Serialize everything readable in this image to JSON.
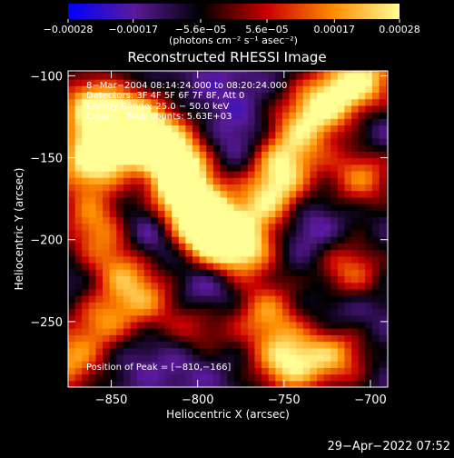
{
  "chart_data": {
    "type": "heatmap",
    "title": "Reconstructed RHESSI Image",
    "xlabel": "Heliocentric X (arcsec)",
    "ylabel": "Heliocentric Y (arcsec)",
    "xlim": [
      -875,
      -690
    ],
    "ylim": [
      -290,
      -97
    ],
    "x_ticks": [
      {
        "value": -850,
        "label": "−850"
      },
      {
        "value": -800,
        "label": "−800"
      },
      {
        "value": -750,
        "label": "−750"
      },
      {
        "value": -700,
        "label": "−700"
      }
    ],
    "y_ticks": [
      {
        "value": -100,
        "label": "−100"
      },
      {
        "value": -150,
        "label": "−150"
      },
      {
        "value": -200,
        "label": "−200"
      },
      {
        "value": -250,
        "label": "−250"
      }
    ],
    "colorbar": {
      "min": -0.00028,
      "max": 0.00028,
      "tick_values": [
        -0.00028,
        -0.00017,
        -5.6e-05,
        5.6e-05,
        0.00017,
        0.00028
      ],
      "tick_labels": [
        "−0.00028",
        "−0.00017",
        "−5.6e−05",
        "5.6e−05",
        "0.00017",
        "0.00028"
      ],
      "unit_label": "(photons cm⁻² s⁻¹ asec⁻²)",
      "colors": [
        "#0000ff",
        "#5a1a9a",
        "#000000",
        "#c80000",
        "#ff8c00",
        "#ffff96"
      ]
    },
    "annotations": [
      "8−Mar−2004 08:14:24.000 to 08:20:24.000",
      "Detectors: 3F 4F 5F 6F 7F 8F, Att 0",
      "Energy Range: 25.0 − 50.0 keV",
      "Clean     Total counts: 5.63E+03"
    ],
    "peak_label": "Position of Peak = [−810,−166]",
    "peak_position": [
      -810,
      -166
    ],
    "hotspots": [
      {
        "x": -862,
        "y": -118,
        "value": 0.00022
      },
      {
        "x": -848,
        "y": -140,
        "value": 0.00024
      },
      {
        "x": -835,
        "y": -128,
        "value": 0.0002
      },
      {
        "x": -815,
        "y": -145,
        "value": 0.00022
      },
      {
        "x": -810,
        "y": -166,
        "value": 0.00028
      },
      {
        "x": -800,
        "y": -185,
        "value": 0.00022
      },
      {
        "x": -790,
        "y": -198,
        "value": 0.00024
      },
      {
        "x": -773,
        "y": -205,
        "value": 0.0002
      },
      {
        "x": -757,
        "y": -175,
        "value": 0.00022
      },
      {
        "x": -750,
        "y": -150,
        "value": 0.0002
      },
      {
        "x": -735,
        "y": -125,
        "value": 0.00018
      },
      {
        "x": -718,
        "y": -110,
        "value": 0.00017
      },
      {
        "x": -705,
        "y": -160,
        "value": 0.00016
      },
      {
        "x": -712,
        "y": -220,
        "value": 0.00015
      },
      {
        "x": -760,
        "y": -245,
        "value": 0.00015
      },
      {
        "x": -748,
        "y": -275,
        "value": 0.00024
      },
      {
        "x": -720,
        "y": -270,
        "value": 0.00016
      },
      {
        "x": -860,
        "y": -190,
        "value": 0.00014
      },
      {
        "x": -845,
        "y": -215,
        "value": 0.00015
      },
      {
        "x": -855,
        "y": -250,
        "value": 0.00015
      },
      {
        "x": -830,
        "y": -235,
        "value": 0.00012
      },
      {
        "x": -875,
        "y": -275,
        "value": 0.00016
      },
      {
        "x": -800,
        "y": -255,
        "value": 0.00011
      },
      {
        "x": -700,
        "y": -100,
        "value": 0.00015
      },
      {
        "x": -865,
        "y": -155,
        "value": 0.00018
      }
    ],
    "coldspots": [
      {
        "x": -830,
        "y": -200,
        "value": -0.00028
      },
      {
        "x": -795,
        "y": -230,
        "value": -0.00026
      },
      {
        "x": -805,
        "y": -270,
        "value": -0.00022
      },
      {
        "x": -775,
        "y": -140,
        "value": -0.00022
      },
      {
        "x": -740,
        "y": -190,
        "value": -0.00024
      },
      {
        "x": -715,
        "y": -240,
        "value": -0.00022
      },
      {
        "x": -700,
        "y": -135,
        "value": -0.0002
      },
      {
        "x": -860,
        "y": -230,
        "value": -0.00017
      },
      {
        "x": -785,
        "y": -105,
        "value": -0.00017
      },
      {
        "x": -825,
        "y": -165,
        "value": -0.00015
      },
      {
        "x": -840,
        "y": -265,
        "value": -0.00018
      }
    ]
  },
  "footer": {
    "timestamp": "29−Apr−2022 07:52"
  }
}
